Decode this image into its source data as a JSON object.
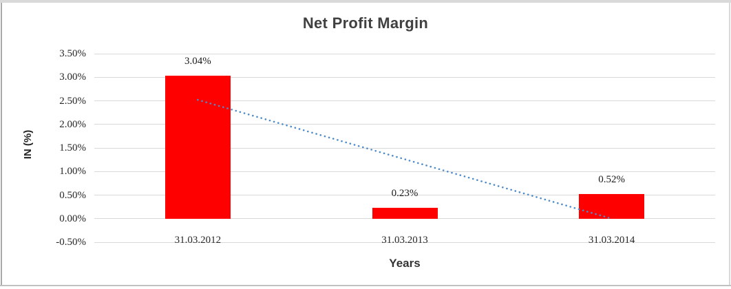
{
  "chart_data": {
    "type": "bar",
    "title": "Net Profit Margin",
    "xlabel": "Years",
    "ylabel": "IN (%)",
    "categories": [
      "31.03.2012",
      "31.03.2013",
      "31.03.2014"
    ],
    "values": [
      3.04,
      0.23,
      0.52
    ],
    "data_labels": [
      "3.04%",
      "0.23%",
      "0.52%"
    ],
    "yticks": [
      3.5,
      3.0,
      2.5,
      2.0,
      1.5,
      1.0,
      0.5,
      0.0,
      -0.5
    ],
    "ytick_labels": [
      "3.50%",
      "3.00%",
      "2.50%",
      "2.00%",
      "1.50%",
      "1.00%",
      "0.50%",
      "0.00%",
      "-0.50%"
    ],
    "ylim": [
      -0.5,
      3.5
    ],
    "grid": "horizontal-gridlines",
    "legend": "none",
    "colors": {
      "bar": "#ff0000",
      "trendline": "#4d8bc9",
      "gridline": "#d9d9d9",
      "title_text": "#404040",
      "axis_text": "#262626"
    },
    "trendline": {
      "type": "linear",
      "style": "dotted",
      "start_value": 2.52,
      "end_value": 0.0
    }
  }
}
